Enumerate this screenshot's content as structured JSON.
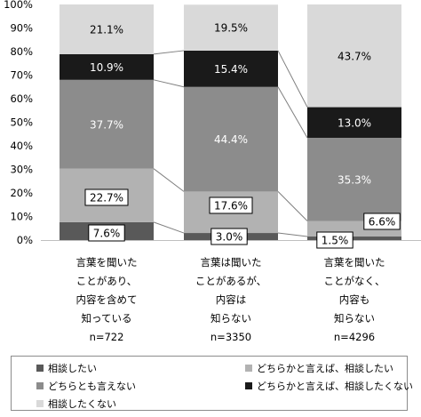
{
  "chart_data": {
    "type": "bar",
    "stacked": true,
    "categories": [
      [
        "言葉を聞いた",
        "ことがあり、",
        "内容を含めて",
        "知っている",
        "n=722"
      ],
      [
        "言葉は聞いた",
        "ことがあるが、",
        "内容は",
        "知らない",
        "n=3350"
      ],
      [
        "言葉を聞いた",
        "ことがなく、",
        "内容も",
        "知らない",
        "n=4296"
      ]
    ],
    "series": [
      {
        "name": "相談したい",
        "color": "#595959",
        "values": [
          7.6,
          3.0,
          1.5
        ],
        "labels": [
          "7.6%",
          "3.0%",
          "1.5%"
        ]
      },
      {
        "name": "どちらかと言えば、相談したい",
        "color": "#b2b2b2",
        "values": [
          22.7,
          17.6,
          6.6
        ],
        "labels": [
          "22.7%",
          "17.6%",
          "6.6%"
        ]
      },
      {
        "name": "どちらとも言えない",
        "color": "#8c8c8c",
        "values": [
          37.7,
          44.4,
          35.3
        ],
        "labels": [
          "37.7%",
          "44.4%",
          "35.3%"
        ]
      },
      {
        "name": "どちらかと言えば、相談したくない",
        "color": "#1a1a1a",
        "values": [
          10.9,
          15.4,
          13.0
        ],
        "labels": [
          "10.9%",
          "15.4%",
          "13.0%"
        ]
      },
      {
        "name": "相談したくない",
        "color": "#d9d9d9",
        "values": [
          21.1,
          19.5,
          43.7
        ],
        "labels": [
          "21.1%",
          "19.5%",
          "43.7%"
        ]
      }
    ],
    "yticks": [
      "0%",
      "10%",
      "20%",
      "30%",
      "40%",
      "50%",
      "60%",
      "70%",
      "80%",
      "90%",
      "100%"
    ],
    "ylim": [
      0,
      100
    ],
    "grid": false,
    "series_lines": true,
    "legend_position": "bottom"
  }
}
